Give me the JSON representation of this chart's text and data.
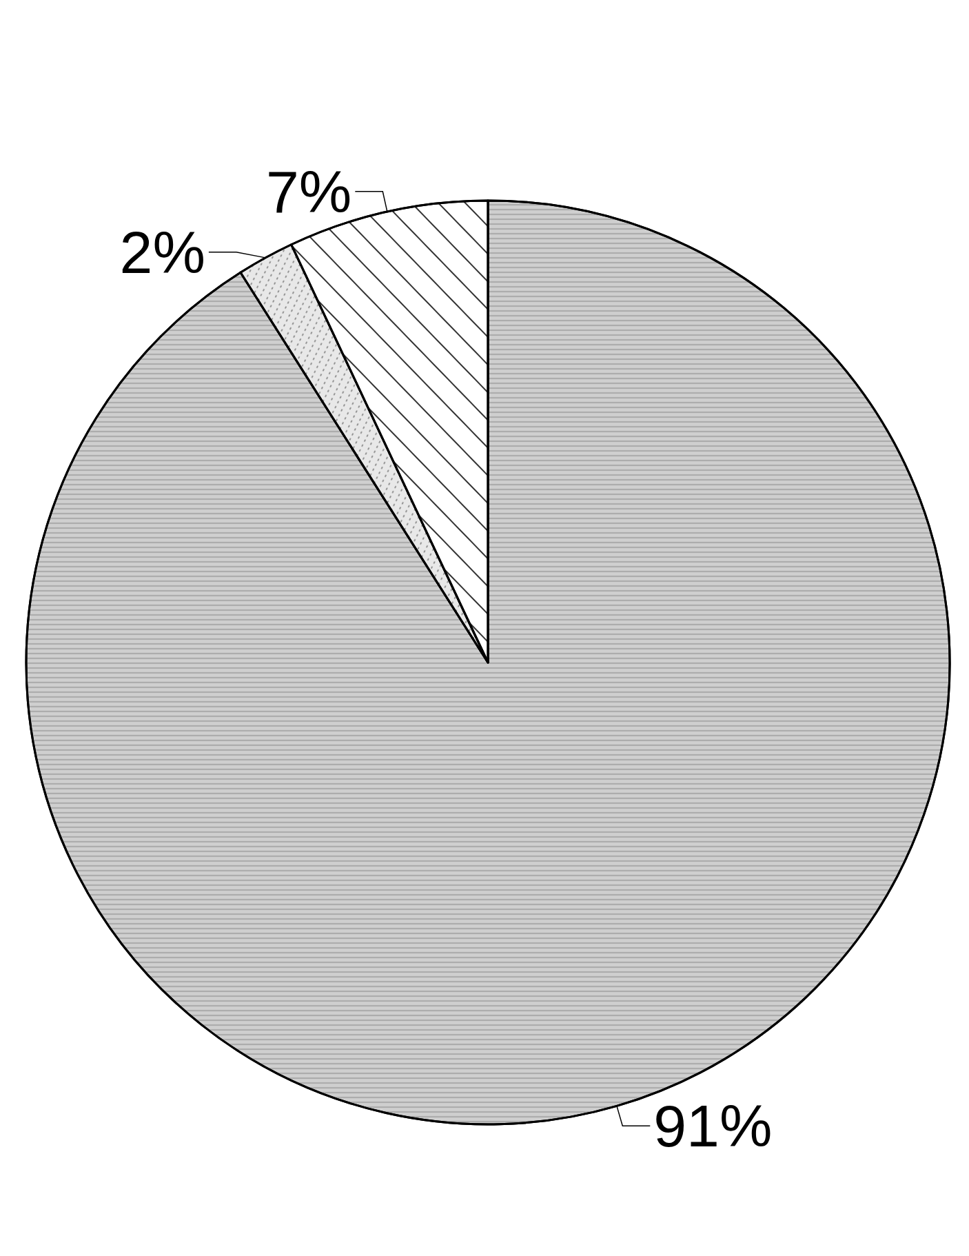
{
  "chart_data": {
    "type": "pie",
    "categories": [
      null,
      null,
      null
    ],
    "values": [
      91,
      2,
      7
    ],
    "value_labels": [
      "91%",
      "2%",
      "7%"
    ],
    "colors": [
      "#cfcfcf",
      "#e8e8e8",
      "#ffffff"
    ]
  }
}
